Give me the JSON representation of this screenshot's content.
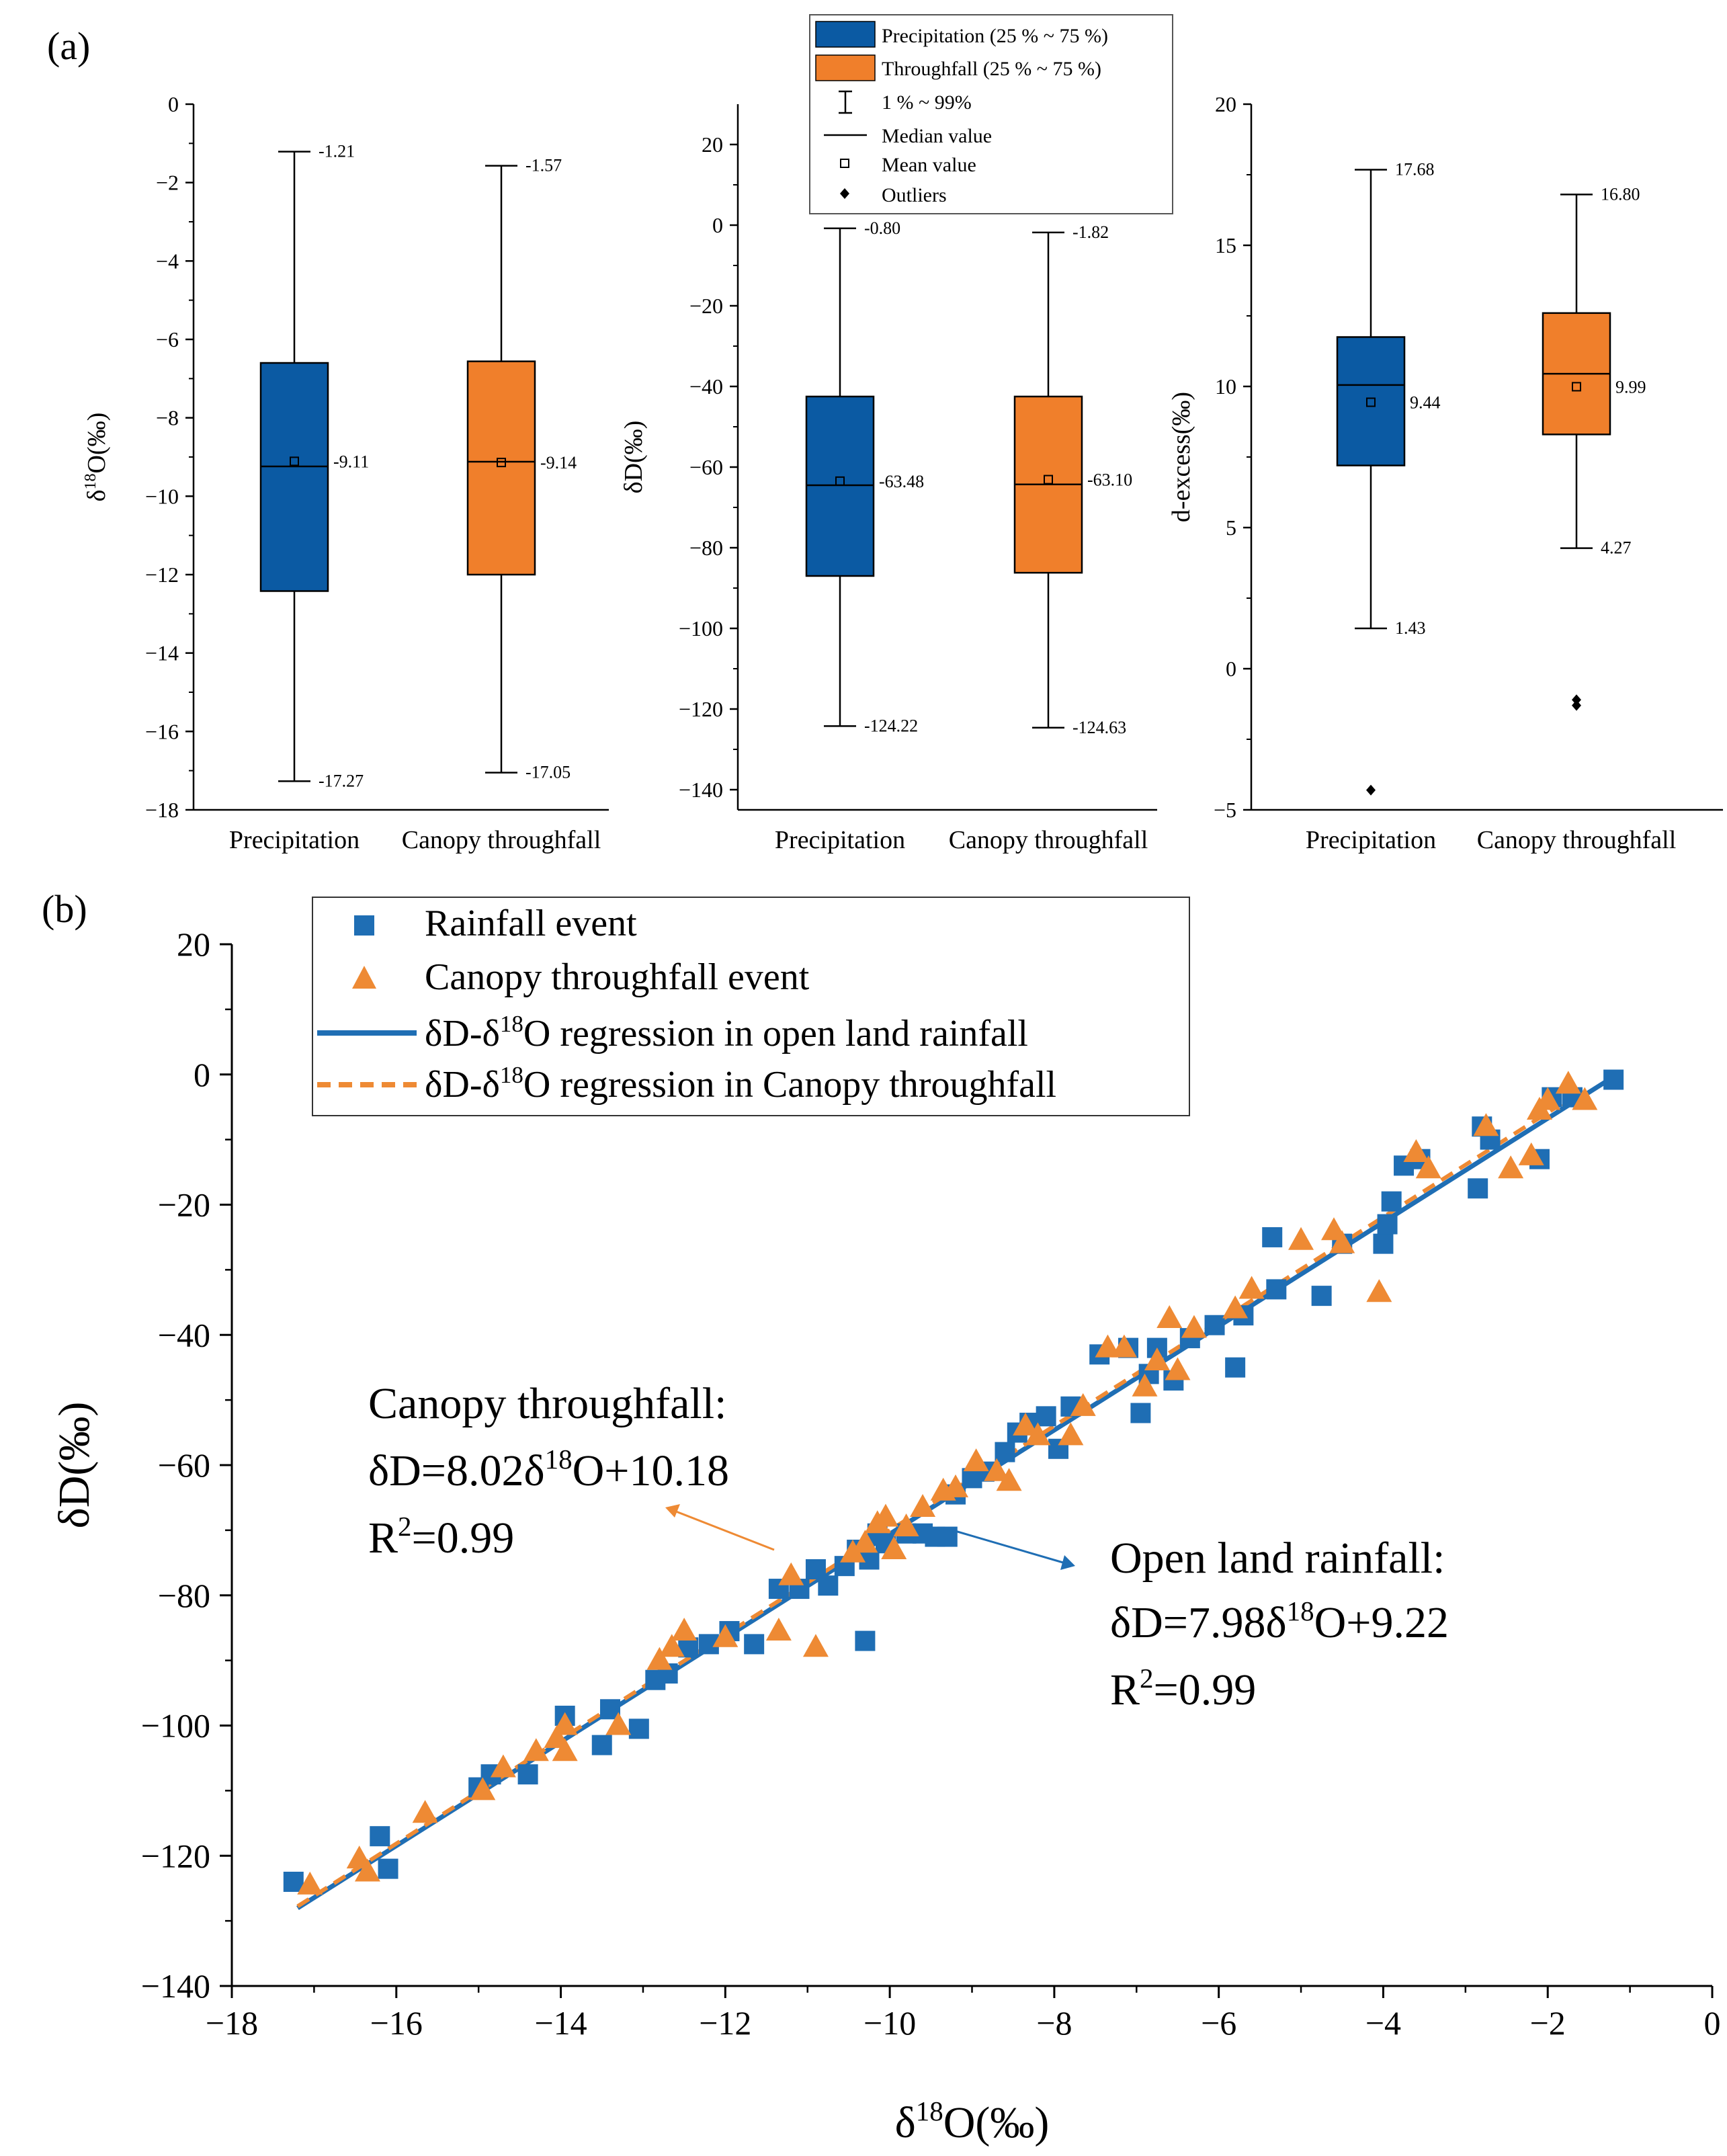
{
  "panels": {
    "a_label": "(a)",
    "b_label": "(b)"
  },
  "colors": {
    "precip_blue": "#0b5aa3",
    "throughfall_orange": "#f07f2b",
    "rain_marker": "#1f6eb4",
    "canopy_marker": "#ee8a34",
    "rain_line": "#1f6eb4",
    "canopy_line": "#ee8a34"
  },
  "legend_a": {
    "precip_box": "Precipitation (25 % ~ 75 %)",
    "throughfall_box": "Throughfall (25 % ~ 75 %)",
    "range": "1 % ~ 99%",
    "median": "Median value",
    "mean": "Mean value",
    "outliers": "Outliers"
  },
  "legend_b": {
    "rain_event": "Rainfall event",
    "canopy_event": "Canopy throughfall event",
    "reg_open_prefix": "δD-δ",
    "reg_open_sup": "18",
    "reg_open_suffix": "O regression in open land rainfall",
    "reg_canopy_prefix": "δD-δ",
    "reg_canopy_sup": "18",
    "reg_canopy_suffix": "O regression in Canopy throughfall"
  },
  "annotations": {
    "canopy_title": "Canopy throughfall:",
    "canopy_eq_prefix": "δD=8.02δ",
    "canopy_eq_sup": "18",
    "canopy_eq_suffix": "O+10.18",
    "canopy_r_prefix": "R",
    "canopy_r_sup": "2",
    "canopy_r_suffix": "=0.99",
    "open_title": "Open land rainfall:",
    "open_eq_prefix": "δD=7.98δ",
    "open_eq_sup": "18",
    "open_eq_suffix": "O+9.22",
    "open_r_prefix": "R",
    "open_r_sup": "2",
    "open_r_suffix": "=0.99"
  },
  "chart_data": [
    {
      "type": "box",
      "panel": "a1",
      "ylabel_prefix": "δ",
      "ylabel_sup": "18",
      "ylabel_suffix": "O(‰)",
      "ylim": [
        -18,
        0
      ],
      "yticks": [
        0,
        -2,
        -4,
        -6,
        -8,
        -10,
        -12,
        -14,
        -16,
        -18
      ],
      "categories": [
        "Precipitation",
        "Canopy throughfall"
      ],
      "boxes": [
        {
          "name": "Precipitation",
          "q1": -12.42,
          "q3": -6.6,
          "median": -9.24,
          "mean": -9.11,
          "p1": -17.27,
          "p99": -1.21,
          "outliers": [],
          "labels": {
            "top": "-1.21",
            "mean": "-9.11",
            "bottom": "-17.27"
          }
        },
        {
          "name": "Canopy throughfall",
          "q1": -12.0,
          "q3": -6.56,
          "median": -9.12,
          "mean": -9.14,
          "p1": -17.05,
          "p99": -1.57,
          "outliers": [],
          "labels": {
            "top": "-1.57",
            "mean": "-9.14",
            "bottom": "-17.05"
          }
        }
      ]
    },
    {
      "type": "box",
      "panel": "a2",
      "ylabel_prefix": "δD(‰)",
      "ylabel_sup": "",
      "ylabel_suffix": "",
      "ylim": [
        -145,
        30
      ],
      "yticks": [
        20,
        0,
        -20,
        -40,
        -60,
        -80,
        -100,
        -120,
        -140
      ],
      "categories": [
        "Precipitation",
        "Canopy throughfall"
      ],
      "boxes": [
        {
          "name": "Precipitation",
          "q1": -87.0,
          "q3": -42.5,
          "median": -64.5,
          "mean": -63.48,
          "p1": -124.22,
          "p99": -0.8,
          "outliers": [],
          "labels": {
            "top": "-0.80",
            "mean": "-63.48",
            "bottom": "-124.22"
          }
        },
        {
          "name": "Canopy throughfall",
          "q1": -86.2,
          "q3": -42.5,
          "median": -64.3,
          "mean": -63.1,
          "p1": -124.63,
          "p99": -1.82,
          "outliers": [],
          "labels": {
            "top": "-1.82",
            "mean": "-63.10",
            "bottom": "-124.63"
          }
        }
      ]
    },
    {
      "type": "box",
      "panel": "a3",
      "ylabel_prefix": "d-excess(‰)",
      "ylabel_sup": "",
      "ylabel_suffix": "",
      "ylim": [
        -5,
        20
      ],
      "yticks": [
        20,
        15,
        10,
        5,
        0,
        -5
      ],
      "categories": [
        "Precipitation",
        "Canopy throughfall"
      ],
      "boxes": [
        {
          "name": "Precipitation",
          "q1": 7.2,
          "q3": 11.75,
          "median": 10.05,
          "mean": 9.44,
          "p1": 1.43,
          "p99": 17.68,
          "outliers": [
            -4.3
          ],
          "labels": {
            "top": "17.68",
            "mean": "9.44",
            "bottom": "1.43"
          }
        },
        {
          "name": "Canopy throughfall",
          "q1": 8.3,
          "q3": 12.6,
          "median": 10.45,
          "mean": 9.99,
          "p1": 4.27,
          "p99": 16.8,
          "outliers": [
            -1.1,
            -1.3
          ],
          "labels": {
            "top": "16.80",
            "mean": "9.99",
            "bottom": "4.27"
          }
        }
      ]
    },
    {
      "type": "scatter",
      "panel": "b",
      "xlabel_prefix": "δ",
      "xlabel_sup": "18",
      "xlabel_suffix": "O(‰)",
      "ylabel": "δD(‰)",
      "xlim": [
        -18,
        0
      ],
      "ylim": [
        -140,
        20
      ],
      "xticks": [
        -18,
        -16,
        -14,
        -12,
        -10,
        -8,
        -6,
        -4,
        -2,
        0
      ],
      "yticks": [
        20,
        0,
        -20,
        -40,
        -60,
        -80,
        -100,
        -120,
        -140
      ],
      "series": [
        {
          "name": "Rainfall event",
          "marker": "square",
          "points": [
            [
              -17.25,
              -124
            ],
            [
              -16.2,
              -117
            ],
            [
              -16.1,
              -122
            ],
            [
              -15.0,
              -109.5
            ],
            [
              -14.85,
              -107.5
            ],
            [
              -14.4,
              -107.5
            ],
            [
              -13.95,
              -98.5
            ],
            [
              -13.5,
              -103
            ],
            [
              -13.4,
              -97.5
            ],
            [
              -13.05,
              -100.5
            ],
            [
              -12.85,
              -93
            ],
            [
              -12.7,
              -92
            ],
            [
              -12.45,
              -88
            ],
            [
              -12.2,
              -87.5
            ],
            [
              -11.95,
              -85.5
            ],
            [
              -11.65,
              -87.5
            ],
            [
              -11.35,
              -79
            ],
            [
              -11.1,
              -79
            ],
            [
              -10.9,
              -76
            ],
            [
              -10.75,
              -78.5
            ],
            [
              -10.55,
              -75.5
            ],
            [
              -10.4,
              -73
            ],
            [
              -10.3,
              -87
            ],
            [
              -10.25,
              -74.5
            ],
            [
              -10.15,
              -70.5
            ],
            [
              -10.05,
              -72
            ],
            [
              -9.8,
              -70.5
            ],
            [
              -9.6,
              -70.5
            ],
            [
              -9.45,
              -71
            ],
            [
              -9.3,
              -71
            ],
            [
              -9.2,
              -64.5
            ],
            [
              -9.0,
              -62
            ],
            [
              -8.85,
              -61
            ],
            [
              -8.6,
              -58
            ],
            [
              -8.45,
              -55
            ],
            [
              -8.3,
              -53.5
            ],
            [
              -8.1,
              -52.5
            ],
            [
              -7.95,
              -57.5
            ],
            [
              -7.8,
              -51
            ],
            [
              -7.45,
              -43
            ],
            [
              -7.1,
              -42
            ],
            [
              -6.95,
              -52
            ],
            [
              -6.85,
              -46
            ],
            [
              -6.75,
              -42
            ],
            [
              -6.55,
              -47
            ],
            [
              -6.35,
              -40.5
            ],
            [
              -6.05,
              -38.5
            ],
            [
              -5.8,
              -45
            ],
            [
              -5.7,
              -37
            ],
            [
              -5.35,
              -25
            ],
            [
              -5.3,
              -33
            ],
            [
              -4.75,
              -34
            ],
            [
              -4.5,
              -26
            ],
            [
              -4.0,
              -26
            ],
            [
              -3.95,
              -23
            ],
            [
              -3.9,
              -19.5
            ],
            [
              -3.75,
              -14
            ],
            [
              -3.55,
              -13
            ],
            [
              -2.85,
              -17.5
            ],
            [
              -2.8,
              -8
            ],
            [
              -2.7,
              -10
            ],
            [
              -2.1,
              -13
            ],
            [
              -1.95,
              -3.5
            ],
            [
              -1.7,
              -3.5
            ],
            [
              -1.2,
              -0.8
            ]
          ]
        },
        {
          "name": "Canopy throughfall event",
          "marker": "triangle",
          "points": [
            [
              -17.05,
              -124.5
            ],
            [
              -16.45,
              -120.5
            ],
            [
              -16.35,
              -122.5
            ],
            [
              -15.65,
              -113.5
            ],
            [
              -14.95,
              -110
            ],
            [
              -14.7,
              -106.5
            ],
            [
              -14.3,
              -104
            ],
            [
              -14.05,
              -102
            ],
            [
              -13.95,
              -100
            ],
            [
              -13.95,
              -104
            ],
            [
              -13.3,
              -100
            ],
            [
              -12.8,
              -90
            ],
            [
              -12.65,
              -88
            ],
            [
              -12.5,
              -85.5
            ],
            [
              -12.0,
              -86.5
            ],
            [
              -11.35,
              -85.5
            ],
            [
              -11.2,
              -77
            ],
            [
              -10.9,
              -88
            ],
            [
              -10.45,
              -73.5
            ],
            [
              -10.3,
              -72
            ],
            [
              -10.15,
              -69
            ],
            [
              -10.05,
              -68
            ],
            [
              -9.95,
              -73
            ],
            [
              -9.8,
              -69.5
            ],
            [
              -9.6,
              -66.5
            ],
            [
              -9.35,
              -64
            ],
            [
              -9.2,
              -63.5
            ],
            [
              -8.95,
              -59.5
            ],
            [
              -8.7,
              -61
            ],
            [
              -8.55,
              -62.5
            ],
            [
              -8.35,
              -54
            ],
            [
              -8.2,
              -55.5
            ],
            [
              -7.8,
              -55.5
            ],
            [
              -7.65,
              -51
            ],
            [
              -7.35,
              -42
            ],
            [
              -7.15,
              -42
            ],
            [
              -6.9,
              -48
            ],
            [
              -6.75,
              -44
            ],
            [
              -6.6,
              -37.5
            ],
            [
              -6.5,
              -45.5
            ],
            [
              -6.3,
              -39
            ],
            [
              -5.8,
              -36
            ],
            [
              -5.6,
              -33
            ],
            [
              -5.0,
              -25.5
            ],
            [
              -4.6,
              -24
            ],
            [
              -4.5,
              -26
            ],
            [
              -4.05,
              -33.5
            ],
            [
              -3.6,
              -12
            ],
            [
              -3.45,
              -14.5
            ],
            [
              -2.75,
              -8
            ],
            [
              -2.45,
              -14.5
            ],
            [
              -2.2,
              -12.5
            ],
            [
              -2.1,
              -5.5
            ],
            [
              -2.0,
              -4
            ],
            [
              -1.75,
              -1.5
            ],
            [
              -1.55,
              -4
            ]
          ]
        }
      ],
      "regressions": [
        {
          "name": "open land rainfall",
          "slope": 7.98,
          "intercept": 9.22,
          "x_range": [
            -17.2,
            -1.25
          ],
          "style": "solid"
        },
        {
          "name": "Canopy throughfall",
          "slope": 8.02,
          "intercept": 10.18,
          "x_range": [
            -17.2,
            -1.55
          ],
          "style": "dashed"
        }
      ]
    }
  ]
}
